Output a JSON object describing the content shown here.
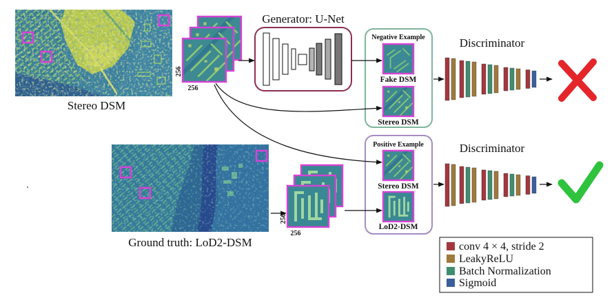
{
  "stereo_dsm": {
    "label": "Stereo DSM"
  },
  "ground_truth": {
    "label": "Ground truth: LoD2-DSM"
  },
  "patch_stack_top": {
    "size_vertical": "256",
    "size_horizontal": "256"
  },
  "patch_stack_bottom": {
    "size_vertical": "256",
    "size_horizontal": "256"
  },
  "generator": {
    "title": "Generator: U-Net"
  },
  "negative_example": {
    "title": "Negative Example",
    "fake_label": "Fake DSM",
    "stereo_label": "Stereo DSM"
  },
  "positive_example": {
    "title": "Positive Example",
    "stereo_label": "Stereo DSM",
    "lod2_label": "LoD2-DSM"
  },
  "discriminator_top": {
    "title": "Discriminator",
    "verdict_icon": "red-cross-icon"
  },
  "discriminator_bottom": {
    "title": "Discriminator",
    "verdict_icon": "green-check-icon"
  },
  "discriminator_layers": [
    0,
    1,
    0,
    2,
    1,
    0,
    2,
    1,
    0,
    2,
    1,
    0,
    3
  ],
  "legend": {
    "items": [
      {
        "label": "conv 4 × 4, stride 2",
        "color": "#a3373f"
      },
      {
        "label": "LeakyReLU",
        "color": "#a07a3c"
      },
      {
        "label": "Batch Normalization",
        "color": "#3f8e6f"
      },
      {
        "label": "Sigmoid",
        "color": "#3b5f9d"
      }
    ]
  },
  "colors": {
    "highlight_box": "#d742d6",
    "generator_border": "#8c2f4f",
    "negative_border": "#7fb49c",
    "positive_border": "#a68bc2",
    "reject": "#e4262b",
    "accept": "#2ec23d"
  }
}
